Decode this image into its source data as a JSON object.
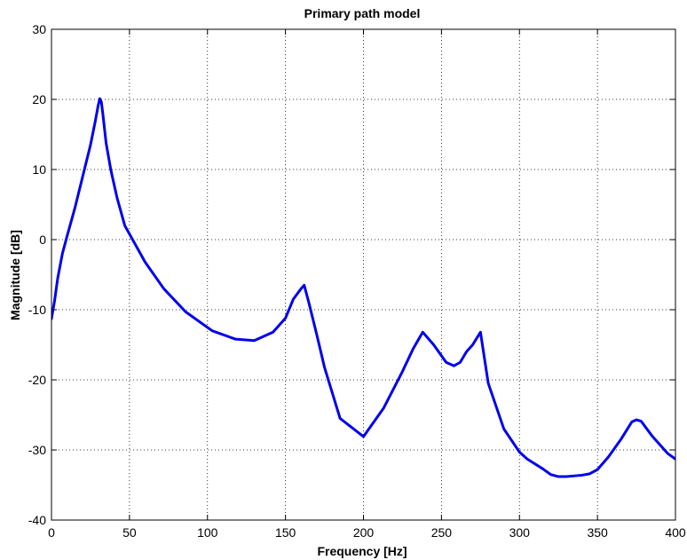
{
  "chart_data": {
    "type": "line",
    "title": "Primary path model",
    "xlabel": "Frequency [Hz]",
    "ylabel": "Magnitude [dB]",
    "xlim": [
      0,
      400
    ],
    "ylim": [
      -40,
      30
    ],
    "xticks": [
      0,
      50,
      100,
      150,
      200,
      250,
      300,
      350,
      400
    ],
    "yticks": [
      -40,
      -30,
      -20,
      -10,
      0,
      10,
      20,
      30
    ],
    "grid": true,
    "series": [
      {
        "color": "#0000ee",
        "x": [
          0,
          2,
          4,
          7,
          10,
          15,
          20,
          25,
          28,
          30,
          31,
          32,
          33,
          35,
          38,
          42,
          47,
          50,
          60,
          72,
          86,
          103,
          118,
          130,
          142,
          150,
          155,
          160,
          162,
          165,
          170,
          175,
          185,
          200,
          213,
          225,
          232,
          238,
          245,
          253,
          258,
          262,
          266,
          270,
          275,
          280,
          290,
          300,
          305,
          315,
          320,
          325,
          330,
          340,
          345,
          350,
          357,
          365,
          372,
          375,
          378,
          385,
          395,
          400
        ],
        "y": [
          -11.3,
          -8.7,
          -5.5,
          -2.0,
          0.5,
          4.5,
          9.0,
          13.5,
          16.8,
          19.2,
          20.1,
          19.6,
          17.8,
          13.8,
          10.0,
          6.0,
          2.0,
          0.8,
          -3.2,
          -7.0,
          -10.3,
          -13.0,
          -14.2,
          -14.4,
          -13.2,
          -11.2,
          -8.5,
          -7.0,
          -6.5,
          -9.0,
          -13.5,
          -18.2,
          -25.5,
          -28.1,
          -24.0,
          -18.8,
          -15.5,
          -13.2,
          -15.0,
          -17.5,
          -18.0,
          -17.5,
          -16.0,
          -15.0,
          -13.2,
          -20.5,
          -27.0,
          -30.3,
          -31.3,
          -32.7,
          -33.5,
          -33.8,
          -33.8,
          -33.6,
          -33.4,
          -32.8,
          -31.0,
          -28.5,
          -26.0,
          -25.7,
          -25.9,
          -28.0,
          -30.5,
          -31.3
        ]
      }
    ]
  }
}
